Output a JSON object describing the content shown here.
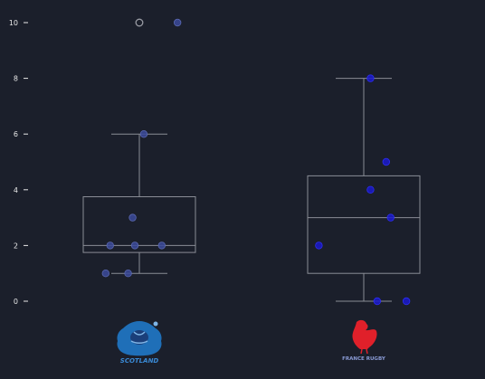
{
  "chart_data": {
    "type": "box",
    "ylim": [
      0,
      10
    ],
    "yticks": [
      "0",
      "2",
      "4",
      "6",
      "8",
      "10"
    ],
    "grid": false,
    "categories": [
      "Scotland",
      "France"
    ],
    "series": [
      {
        "logo_text": "SCOTLAND",
        "box": {
          "whisker_low": 1,
          "q1": 1.75,
          "median": 2,
          "q3": 3.75,
          "whisker_high": 6
        },
        "points": [
          {
            "x": 0.85,
            "y": 1
          },
          {
            "x": 0.95,
            "y": 1
          },
          {
            "x": 0.87,
            "y": 2
          },
          {
            "x": 0.98,
            "y": 2
          },
          {
            "x": 1.1,
            "y": 2
          },
          {
            "x": 0.97,
            "y": 3
          },
          {
            "x": 1.02,
            "y": 6
          },
          {
            "x": 1.17,
            "y": 10
          }
        ],
        "outliers": [
          10
        ],
        "point_color": "#3b4a9a"
      },
      {
        "logo_text": "FRANCE RUGBY",
        "box": {
          "whisker_low": 0,
          "q1": 1,
          "median": 3,
          "q3": 4.5,
          "whisker_high": 8
        },
        "points": [
          {
            "x": 2.06,
            "y": 0
          },
          {
            "x": 2.19,
            "y": 0
          },
          {
            "x": 1.8,
            "y": 2
          },
          {
            "x": 2.12,
            "y": 3
          },
          {
            "x": 2.03,
            "y": 4
          },
          {
            "x": 2.1,
            "y": 5
          },
          {
            "x": 2.03,
            "y": 8
          }
        ],
        "outliers": [],
        "point_color": "#1a1acc"
      }
    ]
  }
}
